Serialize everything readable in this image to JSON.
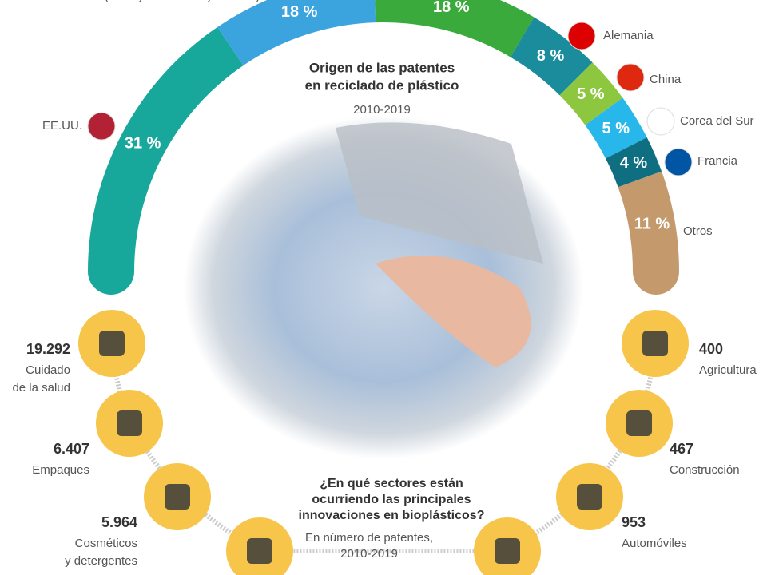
{
  "chart_data": {
    "type": "donut",
    "title": [
      "Origen de las patentes",
      "en reciclado de plástico"
    ],
    "subtitle": "2010-2019",
    "categories": [
      "EE.UU.",
      "(Excluye Alemania y Francia)",
      null,
      "Alemania",
      "China",
      "Corea del Sur",
      "Francia",
      "Otros"
    ],
    "values": [
      31,
      18,
      18,
      8,
      5,
      5,
      4,
      11
    ],
    "value_labels": [
      "31 %",
      "18 %",
      "18 %",
      "8 %",
      "5 %",
      "5 %",
      "4 %",
      "11 %"
    ],
    "colors": [
      "#17a89b",
      "#3ba3dd",
      "#3aaa3c",
      "#1a8c9c",
      "#8dc63f",
      "#27b7ea",
      "#0f6f80",
      "#c49a6c"
    ]
  },
  "sectors": {
    "question": [
      "¿En qué sectores están",
      "ocurriendo las principales",
      "innovaciones en bioplásticos?"
    ],
    "note": [
      "En número de patentes,",
      "2010-2019"
    ],
    "items": [
      {
        "value": "19.292",
        "label": [
          "Cuidado",
          "de la salud"
        ]
      },
      {
        "value": "6.407",
        "label": [
          "Empaques"
        ]
      },
      {
        "value": "5.964",
        "label": [
          "Cosméticos",
          "y detergentes"
        ]
      },
      {
        "value": "953",
        "label": [
          "Automóviles"
        ]
      },
      {
        "value": "467",
        "label": [
          "Construcción"
        ]
      },
      {
        "value": "400",
        "label": [
          "Agricultura"
        ]
      }
    ]
  }
}
